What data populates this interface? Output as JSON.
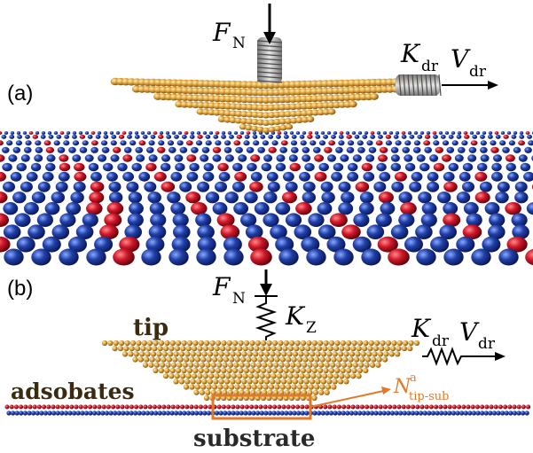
{
  "panel_a": {
    "label": "(a)",
    "force": {
      "symbol": "F",
      "subscript": "N"
    },
    "spring": {
      "symbol": "K",
      "subscript": "dr"
    },
    "velocity": {
      "symbol": "V",
      "subscript": "dr"
    }
  },
  "panel_b": {
    "label": "(b)",
    "force": {
      "symbol": "F",
      "subscript": "N"
    },
    "spring_z": {
      "symbol": "K",
      "subscript": "Z"
    },
    "spring_dr": {
      "symbol": "K",
      "subscript": "dr"
    },
    "velocity": {
      "symbol": "V",
      "subscript": "dr"
    },
    "tip_label": "tip",
    "adsorbates_label": "adsobates",
    "substrate_label": "substrate",
    "contact": {
      "symbol": "N",
      "superscript": "a",
      "subscript": "tip-sub"
    }
  },
  "colors": {
    "gold": "#c8902a",
    "gold_light": "#f0c060",
    "red": "#c0182a",
    "blue": "#1c3a9a",
    "orange_box": "#e07a2a",
    "spring_gray": "#9a9a9a"
  }
}
